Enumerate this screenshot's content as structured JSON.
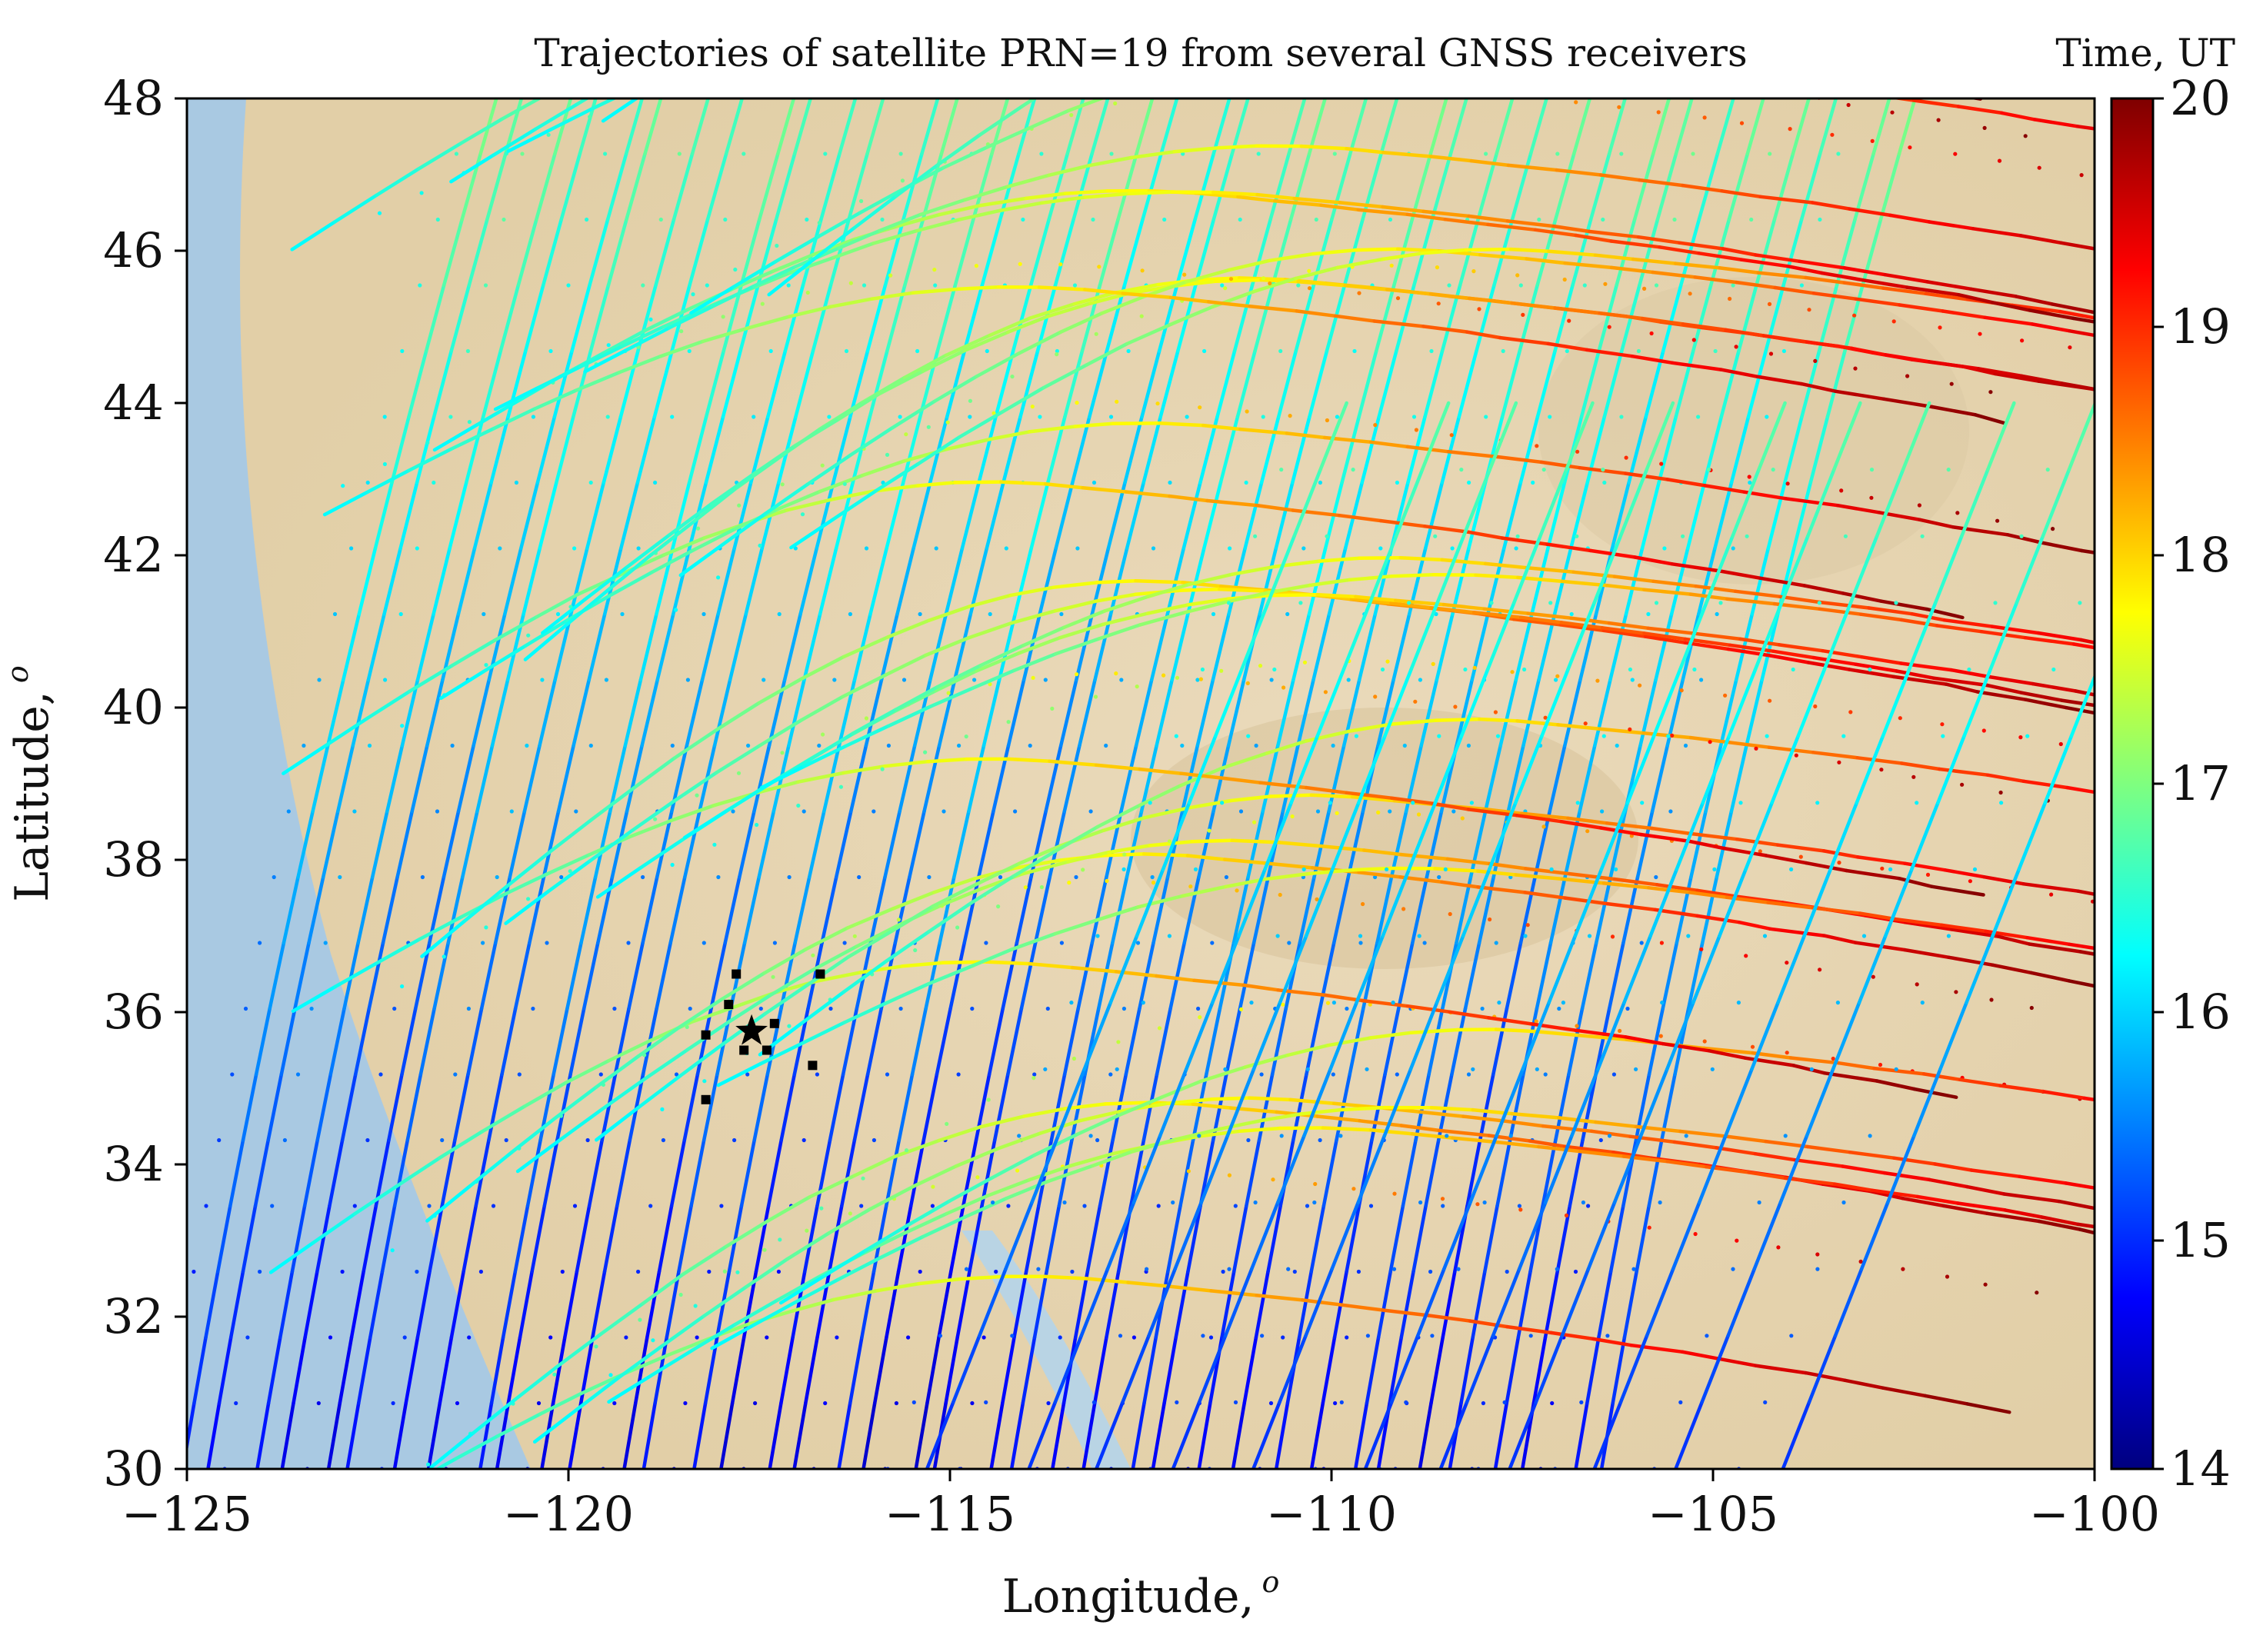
{
  "chart_data": {
    "type": "scatter",
    "title": "Trajectories of satellite PRN=19 from several GNSS receivers",
    "xlabel": "Longitude,",
    "ylabel": "Latitude,",
    "unit_symbol": "o",
    "xlim": [
      -125,
      -100
    ],
    "ylim": [
      30,
      48
    ],
    "xticks": [
      -125,
      -120,
      -115,
      -110,
      -105,
      -100
    ],
    "xtick_labels": [
      "−125",
      "−120",
      "−115",
      "−110",
      "−105",
      "−100"
    ],
    "yticks": [
      30,
      32,
      34,
      36,
      38,
      40,
      42,
      44,
      46,
      48
    ],
    "ytick_labels": [
      "30",
      "32",
      "34",
      "36",
      "38",
      "40",
      "42",
      "44",
      "46",
      "48"
    ],
    "colorbar": {
      "title": "Time, UT",
      "range": [
        14,
        20
      ],
      "ticks": [
        14,
        15,
        16,
        17,
        18,
        19,
        20
      ],
      "tick_labels": [
        "14",
        "15",
        "16",
        "17",
        "18",
        "19",
        "20"
      ],
      "colormap": [
        "#00007f",
        "#0000ff",
        "#007fff",
        "#00ffff",
        "#7fff7f",
        "#ffff00",
        "#ff7f00",
        "#ff0000",
        "#7f0000"
      ]
    },
    "epicenter": {
      "lon": -117.6,
      "lat": 35.75,
      "marker": "star"
    },
    "receivers": [
      {
        "lon": -117.8,
        "lat": 36.5
      },
      {
        "lon": -116.7,
        "lat": 36.5
      },
      {
        "lon": -117.9,
        "lat": 36.1
      },
      {
        "lon": -118.2,
        "lat": 35.7
      },
      {
        "lon": -117.3,
        "lat": 35.85
      },
      {
        "lon": -117.7,
        "lat": 35.5
      },
      {
        "lon": -117.4,
        "lat": 35.5
      },
      {
        "lon": -116.8,
        "lat": 35.3
      },
      {
        "lon": -118.2,
        "lat": 34.85
      }
    ],
    "series_description_note": "Ionospheric pierce point trajectories colored by time (14-20 UT)",
    "background_colors": {
      "ocean": "#a7c7e0",
      "land": "#e8d6b4",
      "axes_edge": "#000000"
    }
  }
}
